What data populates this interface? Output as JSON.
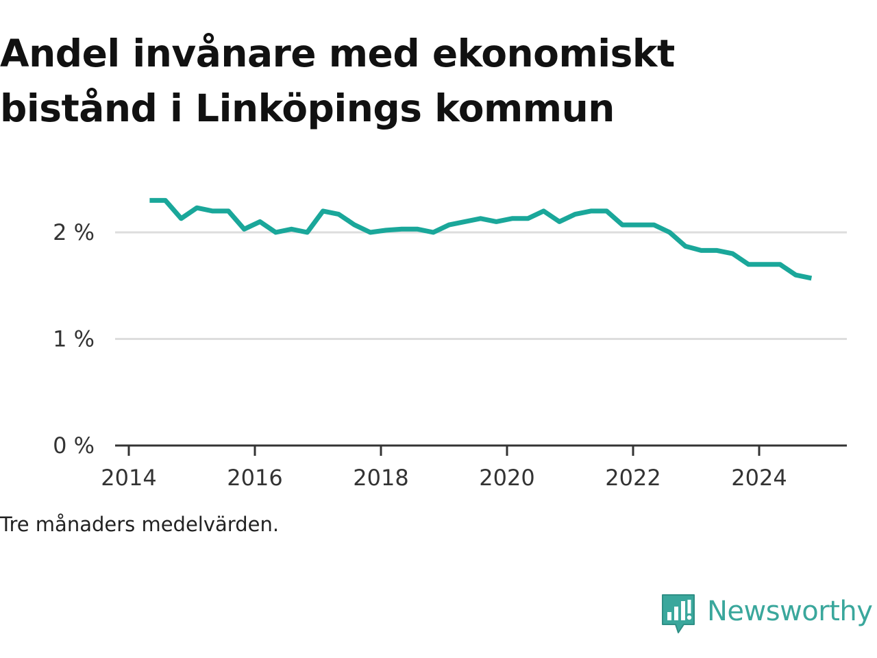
{
  "title": "Andel invånare med ekonomiskt bistånd i Linköpings kommun",
  "note": "Tre månaders medelvärden.",
  "brand": {
    "name": "Newsworthy",
    "icon": "newsworthy-logo-icon",
    "color": "#3aa79c"
  },
  "chart_data": {
    "type": "line",
    "title": "Andel invånare med ekonomiskt bistånd i Linköpings kommun",
    "xlabel": "",
    "ylabel": "",
    "xlim": [
      2013.9,
      2025.55
    ],
    "ylim": [
      0,
      2.5
    ],
    "x_ticks": [
      2014,
      2016,
      2018,
      2020,
      2022,
      2024
    ],
    "x_tick_labels": [
      "2014",
      "2016",
      "2018",
      "2020",
      "2022",
      "2024"
    ],
    "y_ticks": [
      0,
      1,
      2
    ],
    "y_tick_labels": [
      "0 %",
      "1 %",
      "2 %"
    ],
    "grid": true,
    "line_color": "#1aa79a",
    "series": [
      {
        "name": "",
        "x": [
          2014.33,
          2014.58,
          2014.83,
          2015.08,
          2015.33,
          2015.58,
          2015.83,
          2016.08,
          2016.33,
          2016.58,
          2016.83,
          2017.08,
          2017.33,
          2017.58,
          2017.83,
          2018.08,
          2018.33,
          2018.58,
          2018.83,
          2019.08,
          2019.33,
          2019.58,
          2019.83,
          2020.08,
          2020.33,
          2020.58,
          2020.83,
          2021.08,
          2021.33,
          2021.58,
          2021.83,
          2022.08,
          2022.33,
          2022.58,
          2022.83,
          2023.08,
          2023.33,
          2023.58,
          2023.83,
          2024.08,
          2024.33,
          2024.58,
          2024.83
        ],
        "y": [
          2.3,
          2.3,
          2.13,
          2.23,
          2.2,
          2.2,
          2.03,
          2.1,
          2.0,
          2.03,
          2.0,
          2.2,
          2.17,
          2.07,
          2.0,
          2.02,
          2.03,
          2.03,
          2.0,
          2.07,
          2.1,
          2.13,
          2.1,
          2.13,
          2.13,
          2.2,
          2.1,
          2.17,
          2.2,
          2.2,
          2.07,
          2.07,
          2.07,
          2.0,
          1.87,
          1.83,
          1.83,
          1.8,
          1.7,
          1.7,
          1.7,
          1.6,
          1.57
        ]
      }
    ]
  }
}
